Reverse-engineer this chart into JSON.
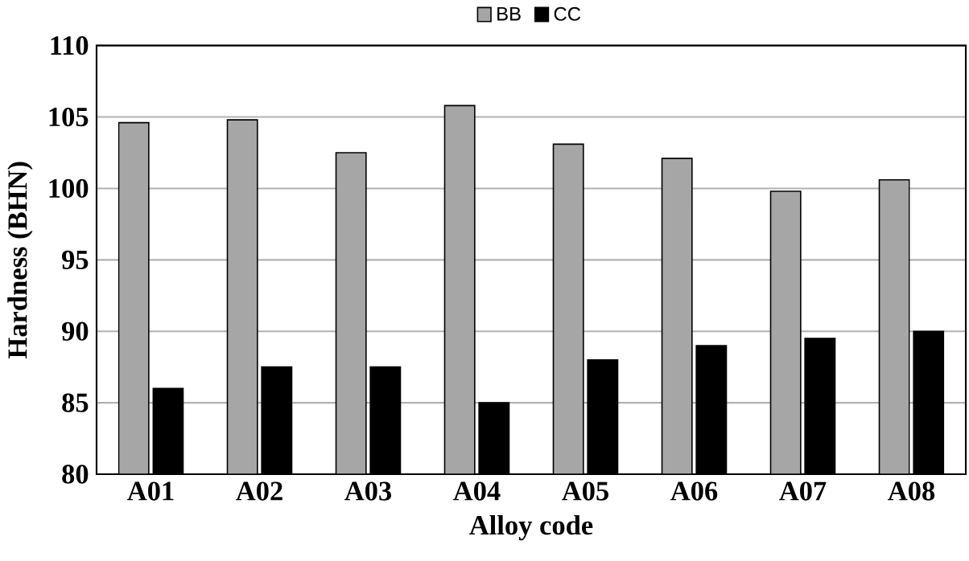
{
  "chart_data": {
    "type": "bar",
    "xlabel": "Alloy code",
    "ylabel": "Hardness (BHN)",
    "categories": [
      "A01",
      "A02",
      "A03",
      "A04",
      "A05",
      "A06",
      "A07",
      "A08"
    ],
    "series": [
      {
        "name": "BB",
        "color": "#a6a6a6",
        "values": [
          104.6,
          104.8,
          102.5,
          105.8,
          103.1,
          102.1,
          99.8,
          100.6
        ]
      },
      {
        "name": "CC",
        "color": "#000000",
        "values": [
          86.0,
          87.5,
          87.5,
          85.0,
          88.0,
          89.0,
          89.5,
          90.0
        ]
      }
    ],
    "ylim": [
      80,
      110
    ],
    "yticks": [
      80,
      85,
      90,
      95,
      100,
      105,
      110
    ],
    "grid": "y",
    "legend": "top"
  }
}
